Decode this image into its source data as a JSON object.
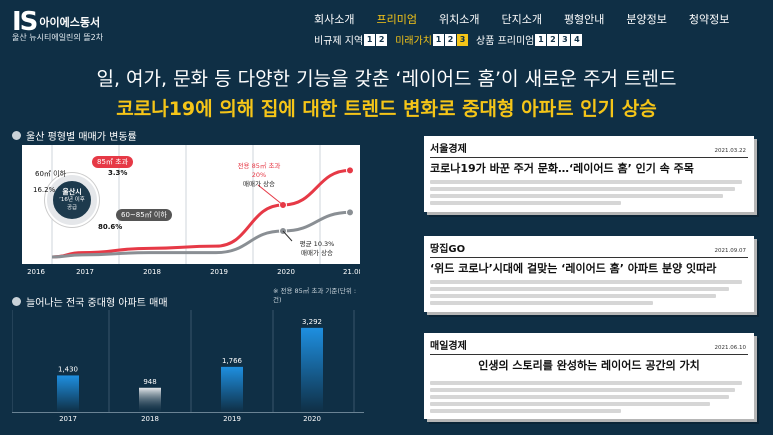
{
  "header": {
    "logo_mark": "IS",
    "logo_name": "아이에스동서",
    "logo_sub": "울산 뉴시티에일린의 뜰2차",
    "nav_top": [
      "회사소개",
      "프리미엄",
      "위치소개",
      "단지소개",
      "평형안내",
      "분양정보",
      "청약정보"
    ],
    "nav_top_active": 1,
    "nav_bottom": [
      {
        "label": "비규제 지역",
        "nums": [
          "1",
          "2"
        ],
        "active": false,
        "selected": null
      },
      {
        "label": "미래가치",
        "nums": [
          "1",
          "2",
          "3"
        ],
        "active": true,
        "selected": 2
      },
      {
        "label": "상품 프리미엄",
        "nums": [
          "1",
          "2",
          "3",
          "4"
        ],
        "active": false,
        "selected": null
      }
    ]
  },
  "headline1": "일, 여가, 문화 등 다양한 기능을 갖춘 ‘레이어드 홈’이 새로운 주거 트렌드",
  "headline2": "코로나19에 의해 집에 대한 트렌드 변화로 중대형 아파트 인기 상승",
  "line_section": {
    "title": "울산 평형별 매매가 변동률",
    "circle_text": [
      "울산시",
      "’16년 이후",
      "공급"
    ],
    "label_big_top": "85㎡ 초과",
    "label_big_value": "3.3%",
    "label_small_top": "60㎡ 이하",
    "label_small_value": "16.2%",
    "label_mid": "60~85㎡ 이하",
    "label_mid_value": "80.6%",
    "callout_red": [
      "전용 85㎡ 초과",
      "20%",
      "매매가 상승"
    ],
    "callout_gray": [
      "평균 10.3%",
      "매매가 상승"
    ],
    "years": [
      "2016",
      "2017",
      "2018",
      "2019",
      "2020",
      "21.08"
    ],
    "colors": {
      "red": "#e63946",
      "gray": "#8a8f94",
      "yellow": "#f5c518"
    }
  },
  "bar_section": {
    "title": "늘어나는 전국 중대형 아파트 매매",
    "note": "※ 전용 85㎡ 초과 기준(단위 : 건)",
    "accent": "#1e8fe0"
  },
  "chart_data": [
    {
      "type": "line",
      "title": "울산 평형별 매매가 변동률",
      "x": [
        "2016",
        "2017",
        "2018",
        "2019",
        "2020",
        "21.08"
      ],
      "series": [
        {
          "name": "",
          "values": [
            0,
            1,
            2,
            2.5,
            12,
            20
          ]
        },
        {
          "name": "",
          "values": [
            0,
            0.5,
            1,
            1,
            6,
            10.3
          ]
        }
      ]
    },
    {
      "type": "bar",
      "title": "늘어나는 전국 중대형 아파트 매매",
      "categories": [
        "2017",
        "2018",
        "2019",
        "2020"
      ],
      "values": [
        1430,
        948,
        1766,
        3292
      ],
      "ylim": [
        0,
        3600
      ]
    }
  ],
  "articles": [
    {
      "source": "서울경제",
      "date": "2021.03.22",
      "title": "코로나19가 바꾼 주거 문화…‘레이어드 홈’ 인기 속 주목"
    },
    {
      "source": "땅집GO",
      "date": "2021.09.07",
      "title": "‘위드 코로나’시대에 걸맞는 ‘레이어드 홈’ 아파트 분양 잇따라"
    },
    {
      "source": "매일경제",
      "date": "2021.06.10",
      "title": "인생의 스토리를 완성하는 레이어드 공간의 가치"
    }
  ]
}
